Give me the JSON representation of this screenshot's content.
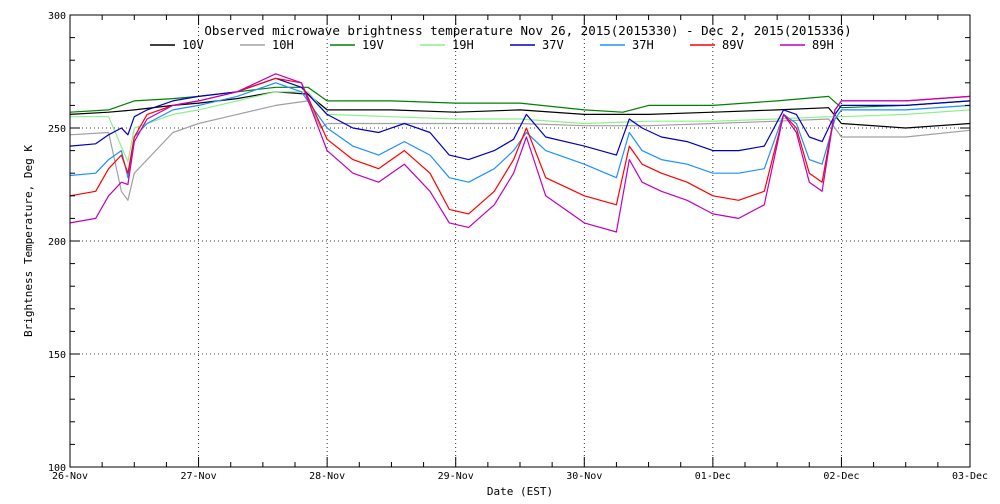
{
  "chart_data": {
    "type": "line",
    "title": "Observed microwave brightness temperature Nov 26, 2015(2015330) - Dec  2, 2015(2015336)",
    "xlabel": "Date (EST)",
    "ylabel": "Brightness Temperature, Deg K",
    "ylim": [
      100,
      300
    ],
    "xlim": [
      0,
      7
    ],
    "x_unit": "days since 26-Nov",
    "x_tick_labels": [
      "26-Nov",
      "27-Nov",
      "28-Nov",
      "29-Nov",
      "30-Nov",
      "01-Dec",
      "02-Dec",
      "03-Dec"
    ],
    "y_ticks": [
      100,
      150,
      200,
      250,
      300
    ],
    "grid": true,
    "legend_position": "top",
    "series": [
      {
        "name": "10V",
        "color": "#000000",
        "x": [
          0,
          0.3,
          0.5,
          0.8,
          1.0,
          1.3,
          1.6,
          1.85,
          2.0,
          2.5,
          3.0,
          3.5,
          4.0,
          4.5,
          5.0,
          5.5,
          5.9,
          6.0,
          6.5,
          7.0
        ],
        "y": [
          256,
          257,
          258,
          260,
          261,
          263,
          266,
          265,
          258,
          258,
          257,
          258,
          256,
          256,
          257,
          258,
          259,
          252,
          250,
          252
        ]
      },
      {
        "name": "10H",
        "color": "#a0a0a0",
        "x": [
          0,
          0.3,
          0.4,
          0.45,
          0.5,
          0.8,
          1.0,
          1.3,
          1.6,
          1.85,
          1.95,
          2.0,
          2.5,
          3.0,
          3.5,
          4.0,
          4.5,
          5.0,
          5.5,
          5.9,
          6.0,
          6.5,
          7.0
        ],
        "y": [
          247,
          248,
          222,
          218,
          230,
          248,
          252,
          256,
          260,
          262,
          250,
          252,
          252,
          252,
          252,
          251,
          251,
          252,
          253,
          254,
          246,
          246,
          249
        ]
      },
      {
        "name": "19V",
        "color": "#008000",
        "x": [
          0,
          0.3,
          0.5,
          0.8,
          1.0,
          1.3,
          1.6,
          1.85,
          2.0,
          2.5,
          3.0,
          3.5,
          4.0,
          4.3,
          4.5,
          5.0,
          5.5,
          5.9,
          6.0,
          6.5,
          7.0
        ],
        "y": [
          257,
          258,
          262,
          263,
          264,
          266,
          268,
          268,
          262,
          262,
          261,
          261,
          258,
          257,
          260,
          260,
          262,
          264,
          259,
          260,
          262
        ]
      },
      {
        "name": "19H",
        "color": "#90ee90",
        "x": [
          0,
          0.3,
          0.45,
          0.5,
          0.8,
          1.0,
          1.3,
          1.6,
          1.85,
          2.0,
          2.5,
          3.0,
          3.5,
          4.0,
          4.5,
          5.0,
          5.5,
          5.9,
          6.0,
          6.5,
          7.0
        ],
        "y": [
          255,
          255,
          235,
          250,
          256,
          258,
          262,
          266,
          266,
          256,
          255,
          254,
          254,
          252,
          253,
          253,
          254,
          255,
          255,
          256,
          258
        ]
      },
      {
        "name": "37V",
        "color": "#0000c0",
        "x": [
          0,
          0.2,
          0.3,
          0.4,
          0.45,
          0.5,
          0.6,
          0.8,
          1.0,
          1.3,
          1.6,
          1.8,
          2.0,
          2.2,
          2.4,
          2.6,
          2.8,
          2.95,
          3.1,
          3.3,
          3.45,
          3.55,
          3.7,
          4.0,
          4.25,
          4.35,
          4.45,
          4.6,
          4.8,
          5.0,
          5.2,
          5.4,
          5.55,
          5.65,
          5.75,
          5.85,
          5.95,
          6.0,
          6.5,
          7.0
        ],
        "y": [
          242,
          243,
          247,
          250,
          247,
          255,
          258,
          262,
          264,
          266,
          272,
          268,
          256,
          250,
          248,
          252,
          248,
          238,
          236,
          240,
          245,
          256,
          246,
          242,
          238,
          254,
          250,
          246,
          244,
          240,
          240,
          242,
          258,
          256,
          246,
          244,
          256,
          260,
          260,
          262
        ]
      },
      {
        "name": "37H",
        "color": "#1e90ff",
        "x": [
          0,
          0.2,
          0.3,
          0.4,
          0.45,
          0.5,
          0.6,
          0.8,
          1.0,
          1.3,
          1.6,
          1.8,
          2.0,
          2.2,
          2.4,
          2.6,
          2.8,
          2.95,
          3.1,
          3.3,
          3.45,
          3.55,
          3.7,
          4.0,
          4.25,
          4.35,
          4.45,
          4.6,
          4.8,
          5.0,
          5.2,
          5.4,
          5.55,
          5.65,
          5.75,
          5.85,
          5.95,
          6.0,
          6.5,
          7.0
        ],
        "y": [
          229,
          230,
          236,
          240,
          228,
          246,
          252,
          258,
          260,
          264,
          270,
          266,
          250,
          242,
          238,
          244,
          238,
          228,
          226,
          232,
          240,
          248,
          240,
          234,
          228,
          248,
          240,
          236,
          234,
          230,
          230,
          232,
          256,
          252,
          236,
          234,
          254,
          258,
          258,
          260
        ]
      },
      {
        "name": "89V",
        "color": "#ff0000",
        "x": [
          0,
          0.2,
          0.3,
          0.4,
          0.45,
          0.5,
          0.6,
          0.8,
          1.0,
          1.3,
          1.6,
          1.8,
          2.0,
          2.2,
          2.4,
          2.6,
          2.8,
          2.95,
          3.1,
          3.3,
          3.45,
          3.55,
          3.7,
          4.0,
          4.25,
          4.35,
          4.45,
          4.6,
          4.8,
          5.0,
          5.2,
          5.4,
          5.55,
          5.65,
          5.75,
          5.85,
          5.95,
          6.0,
          6.5,
          7.0
        ],
        "y": [
          220,
          222,
          232,
          238,
          230,
          246,
          256,
          260,
          262,
          266,
          272,
          270,
          245,
          236,
          232,
          240,
          230,
          214,
          212,
          222,
          236,
          250,
          228,
          220,
          216,
          242,
          234,
          230,
          226,
          220,
          218,
          222,
          256,
          250,
          230,
          226,
          258,
          262,
          262,
          264
        ]
      },
      {
        "name": "89H",
        "color": "#c000c0",
        "x": [
          0,
          0.2,
          0.3,
          0.4,
          0.45,
          0.5,
          0.6,
          0.8,
          1.0,
          1.3,
          1.6,
          1.8,
          2.0,
          2.2,
          2.4,
          2.6,
          2.8,
          2.95,
          3.1,
          3.3,
          3.45,
          3.55,
          3.7,
          4.0,
          4.25,
          4.35,
          4.45,
          4.6,
          4.8,
          5.0,
          5.2,
          5.4,
          5.55,
          5.65,
          5.75,
          5.85,
          5.95,
          6.0,
          6.5,
          7.0
        ],
        "y": [
          208,
          210,
          220,
          226,
          225,
          244,
          254,
          260,
          262,
          266,
          274,
          270,
          240,
          230,
          226,
          234,
          222,
          208,
          206,
          216,
          230,
          246,
          220,
          208,
          204,
          236,
          226,
          222,
          218,
          212,
          210,
          216,
          256,
          248,
          226,
          222,
          258,
          262,
          262,
          264
        ]
      }
    ]
  }
}
